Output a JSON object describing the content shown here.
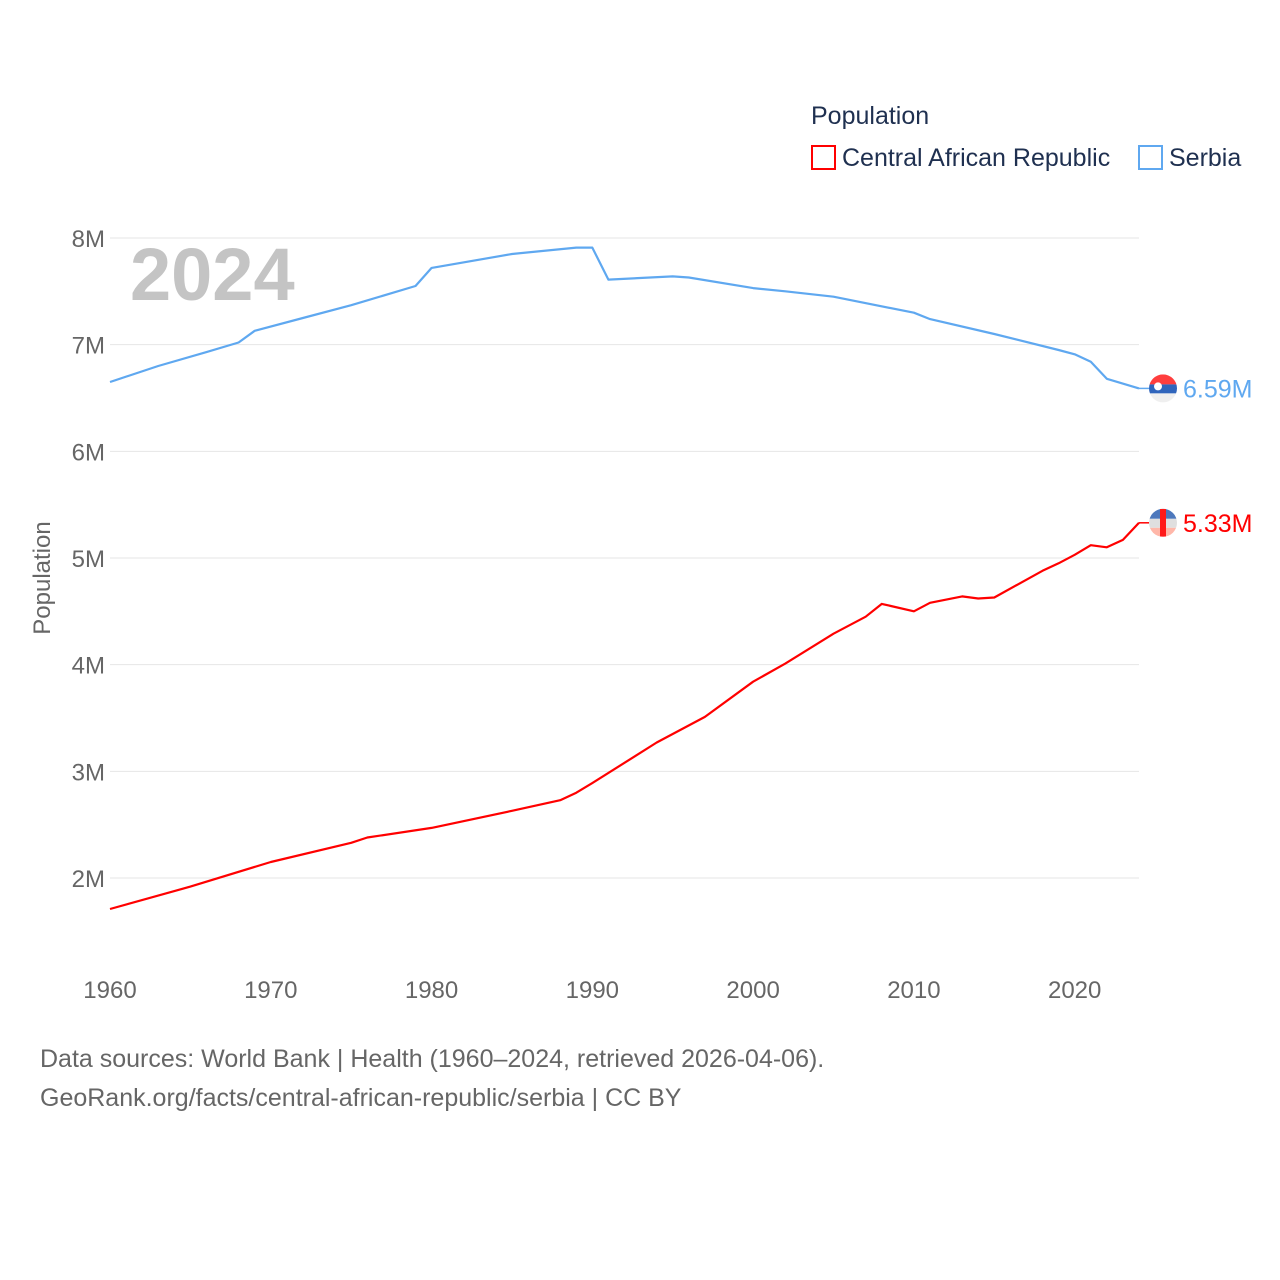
{
  "chart_data": {
    "type": "line",
    "title": "",
    "year_overlay": "2024",
    "xlabel": "",
    "ylabel": "Population",
    "xlim": [
      1960,
      2024
    ],
    "ylim": [
      1400000,
      8000000
    ],
    "grid": true,
    "x_ticks": [
      "1960",
      "1970",
      "1980",
      "1990",
      "2000",
      "2010",
      "2020"
    ],
    "y_ticks": [
      {
        "value": 2000000,
        "label": "2M"
      },
      {
        "value": 3000000,
        "label": "3M"
      },
      {
        "value": 4000000,
        "label": "4M"
      },
      {
        "value": 5000000,
        "label": "5M"
      },
      {
        "value": 6000000,
        "label": "6M"
      },
      {
        "value": 7000000,
        "label": "7M"
      },
      {
        "value": 8000000,
        "label": "8M"
      }
    ],
    "legend": {
      "title": "Population",
      "placement": "top-right"
    },
    "series": [
      {
        "name": "Central African Republic",
        "color": "#ff0000",
        "end_label": "5.33M",
        "x": [
          1960,
          1965,
          1970,
          1975,
          1976,
          1980,
          1985,
          1988,
          1989,
          1990,
          1994,
          1997,
          2000,
          2002,
          2005,
          2007,
          2008,
          2010,
          2011,
          2013,
          2014,
          2015,
          2018,
          2019,
          2020,
          2021,
          2022,
          2023,
          2024
        ],
        "values": [
          1710000,
          1920000,
          2150000,
          2330000,
          2380000,
          2470000,
          2630000,
          2730000,
          2800000,
          2890000,
          3270000,
          3510000,
          3840000,
          4010000,
          4290000,
          4450000,
          4570000,
          4500000,
          4580000,
          4640000,
          4620000,
          4630000,
          4880000,
          4950000,
          5030000,
          5120000,
          5100000,
          5170000,
          5330000
        ]
      },
      {
        "name": "Serbia",
        "color": "#5fa8f0",
        "end_label": "6.59M",
        "x": [
          1960,
          1963,
          1966,
          1968,
          1969,
          1972,
          1975,
          1979,
          1980,
          1985,
          1989,
          1990,
          1991,
          1995,
          1996,
          2000,
          2002,
          2005,
          2010,
          2011,
          2015,
          2019,
          2020,
          2021,
          2022,
          2024
        ],
        "values": [
          6650000,
          6800000,
          6930000,
          7020000,
          7130000,
          7250000,
          7370000,
          7550000,
          7720000,
          7850000,
          7910000,
          7910000,
          7610000,
          7640000,
          7630000,
          7530000,
          7500000,
          7450000,
          7300000,
          7240000,
          7100000,
          6950000,
          6910000,
          6840000,
          6680000,
          6590000
        ]
      }
    ]
  },
  "footer": {
    "line1": "Data sources: World Bank | Health (1960–2024, retrieved 2026-04-06).",
    "line2": "GeoRank.org/facts/central-african-republic/serbia | CC BY"
  }
}
